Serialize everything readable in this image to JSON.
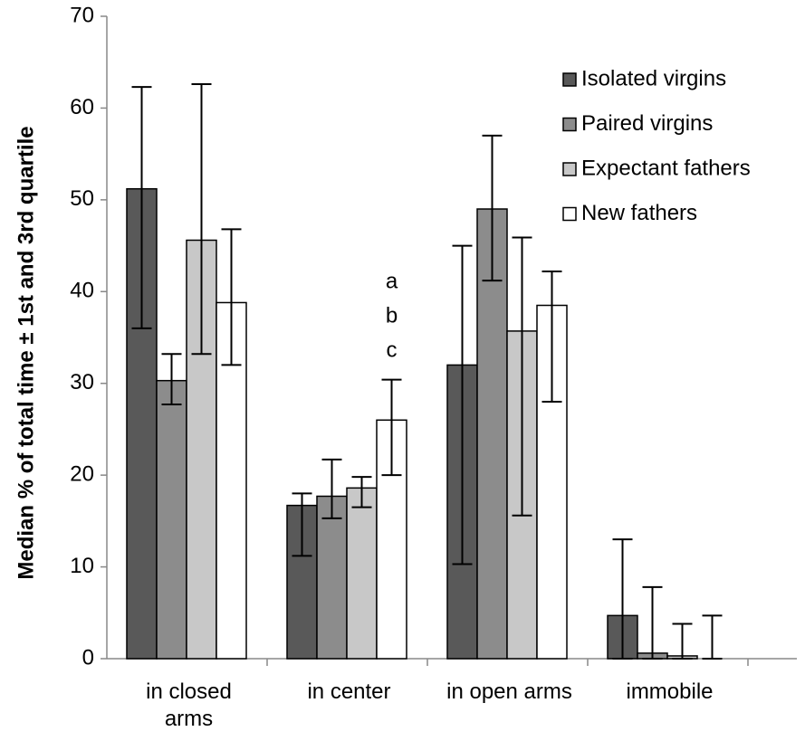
{
  "chart_data": {
    "type": "bar",
    "ylabel": "Median % of total time  ± 1st and 3rd quartile",
    "categories": [
      "in closed arms",
      "in center",
      "in open arms",
      "immobile"
    ],
    "series": [
      {
        "name": "Isolated virgins",
        "color": "#595959",
        "values": [
          51.2,
          16.7,
          32,
          4.7
        ],
        "q1": [
          36,
          11.2,
          10.3,
          0
        ],
        "q3": [
          62.3,
          18,
          45,
          13
        ]
      },
      {
        "name": "Paired virgins",
        "color": "#8c8c8c",
        "values": [
          30.3,
          17.7,
          49,
          0.6
        ],
        "q1": [
          27.7,
          15.3,
          41.2,
          0
        ],
        "q3": [
          33.2,
          21.7,
          57,
          7.8
        ]
      },
      {
        "name": "Expectant fathers",
        "color": "#c8c8c8",
        "values": [
          45.6,
          18.6,
          35.7,
          0.3
        ],
        "q1": [
          33.2,
          16.5,
          15.6,
          0
        ],
        "q3": [
          62.6,
          19.8,
          45.9,
          3.8
        ]
      },
      {
        "name": "New fathers",
        "color": "#ffffff",
        "values": [
          38.8,
          26,
          38.5,
          0
        ],
        "q1": [
          32,
          20,
          28,
          0
        ],
        "q3": [
          46.8,
          30.4,
          42.2,
          4.7
        ]
      }
    ],
    "annotations": [
      "a",
      "b",
      "c"
    ],
    "ylim": [
      0,
      70
    ],
    "yticks": [
      0,
      10,
      20,
      30,
      40,
      50,
      60,
      70
    ],
    "legend": "upper right"
  }
}
